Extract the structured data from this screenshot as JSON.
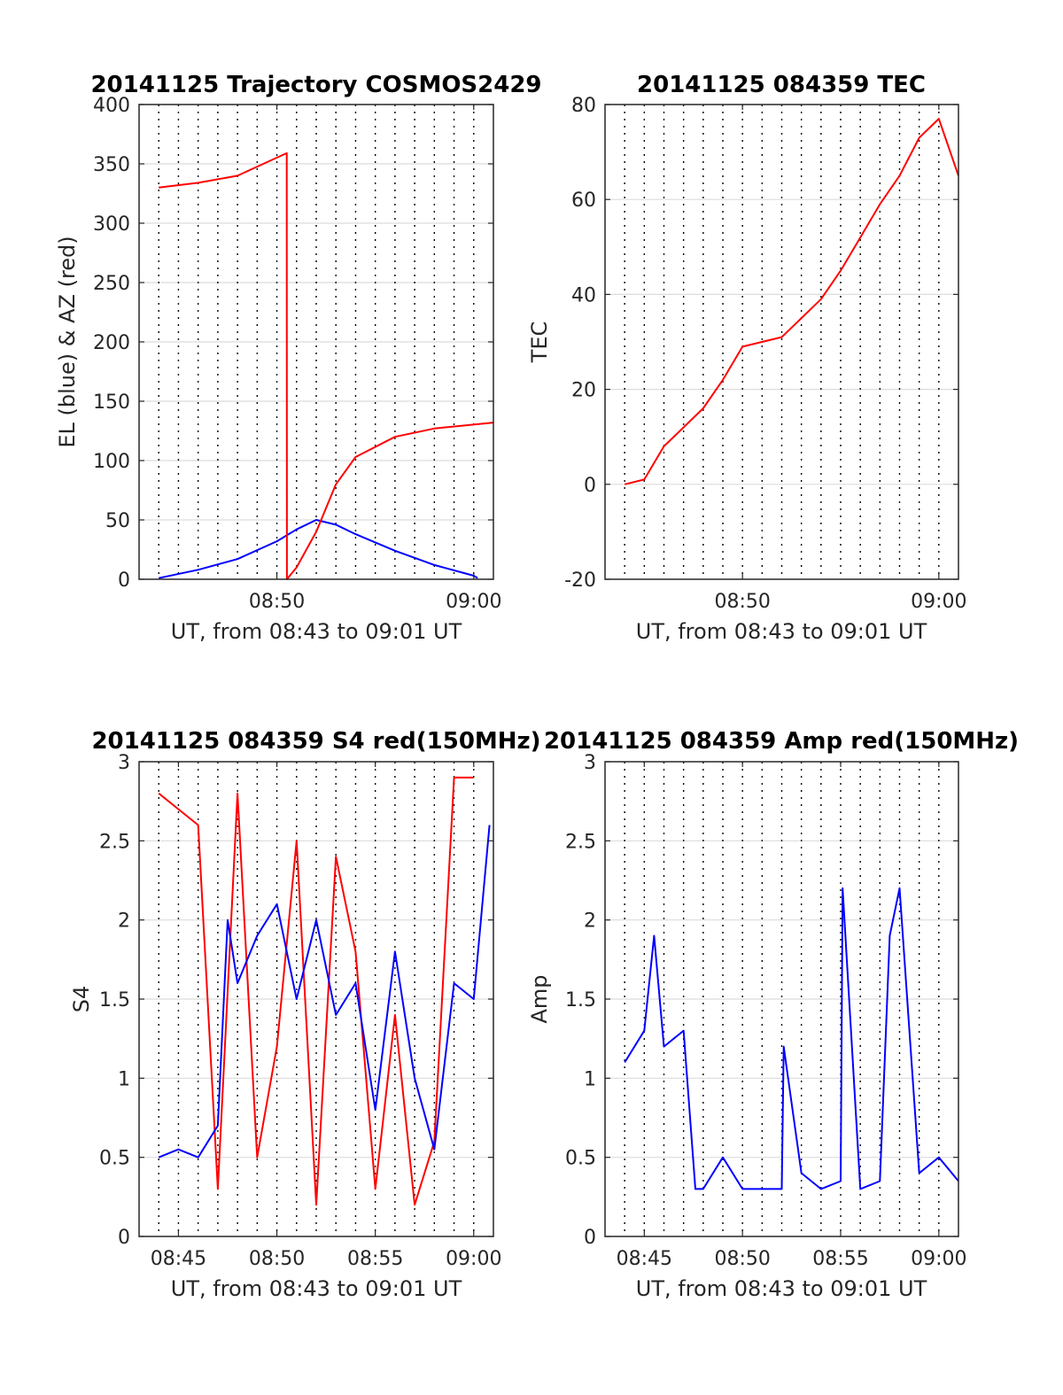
{
  "chart_data": [
    {
      "type": "line",
      "title": "20141125 Trajectory COSMOS2429",
      "xlabel": "UT, from 08:43 to 09:01 UT",
      "ylabel": "EL (blue) & AZ (red)",
      "xlim": [
        "08:43",
        "09:01"
      ],
      "ylim": [
        0,
        400
      ],
      "yticks": [
        0,
        50,
        100,
        150,
        200,
        250,
        300,
        350,
        400
      ],
      "xticks": [
        "08:50",
        "09:00"
      ],
      "minute_gridlines": true,
      "grid": true,
      "series": [
        {
          "color": "#0000ff",
          "x": [
            "08:44",
            "08:46",
            "08:48",
            "08:50",
            "08:51",
            "08:52",
            "08:53",
            "08:54",
            "08:56",
            "08:58",
            "09:00",
            "09:00.2"
          ],
          "values": [
            1,
            8,
            17,
            32,
            42,
            50,
            46,
            38,
            24,
            12,
            3,
            1
          ]
        },
        {
          "color": "#ff0000",
          "x": [
            "08:44",
            "08:46",
            "08:48",
            "08:50.5",
            "08:50.51",
            "08:51",
            "08:52",
            "08:53",
            "08:54",
            "08:56",
            "08:58",
            "09:01"
          ],
          "values": [
            330,
            334,
            340,
            359,
            0,
            10,
            40,
            80,
            103,
            120,
            127,
            132
          ]
        }
      ]
    },
    {
      "type": "line",
      "title": "20141125 084359 TEC",
      "xlabel": "UT, from 08:43 to 09:01 UT",
      "ylabel": "TEC",
      "xlim": [
        "08:43",
        "09:01"
      ],
      "ylim": [
        -20,
        80
      ],
      "yticks": [
        -20,
        0,
        20,
        40,
        60,
        80
      ],
      "xticks": [
        "08:50",
        "09:00"
      ],
      "minute_gridlines": true,
      "grid": true,
      "series": [
        {
          "color": "#ff0000",
          "x": [
            "08:44",
            "08:45",
            "08:46",
            "08:47",
            "08:48",
            "08:49",
            "08:50",
            "08:51",
            "08:52",
            "08:53",
            "08:54",
            "08:55",
            "08:56",
            "08:57",
            "08:58",
            "08:59",
            "09:00",
            "09:01"
          ],
          "values": [
            0,
            1,
            8,
            12,
            16,
            22,
            29,
            30,
            31,
            35,
            39,
            45,
            52,
            59,
            65,
            73,
            77,
            65
          ]
        }
      ]
    },
    {
      "type": "line",
      "title": "20141125 084359 S4 red(150MHz)",
      "xlabel": "UT, from 08:43 to 09:01 UT",
      "ylabel": "S4",
      "xlim": [
        "08:43",
        "09:01"
      ],
      "ylim": [
        0,
        3
      ],
      "yticks": [
        0,
        0.5,
        1,
        1.5,
        2,
        2.5,
        3
      ],
      "xticks": [
        "08:45",
        "08:50",
        "08:55",
        "09:00"
      ],
      "minute_gridlines": true,
      "grid": true,
      "series": [
        {
          "color": "#ff0000",
          "x": [
            "08:44",
            "08:45",
            "08:46",
            "08:47",
            "08:48",
            "08:49",
            "08:50",
            "08:51",
            "08:52",
            "08:53",
            "08:54",
            "08:55",
            "08:56",
            "08:57",
            "08:58",
            "08:59",
            "09:00"
          ],
          "values": [
            2.8,
            2.7,
            2.6,
            0.3,
            2.8,
            0.5,
            1.2,
            2.5,
            0.2,
            2.4,
            1.8,
            0.3,
            1.4,
            0.2,
            0.6,
            2.9,
            2.9
          ]
        },
        {
          "color": "#0000ff",
          "x": [
            "08:44",
            "08:45",
            "08:46",
            "08:47",
            "08:47.5",
            "08:48",
            "08:49",
            "08:50",
            "08:51",
            "08:52",
            "08:53",
            "08:54",
            "08:55",
            "08:56",
            "08:57",
            "08:58",
            "08:59",
            "09:00",
            "09:00.8"
          ],
          "values": [
            0.5,
            0.55,
            0.5,
            0.7,
            2.0,
            1.6,
            1.9,
            2.1,
            1.5,
            2.0,
            1.4,
            1.6,
            0.8,
            1.8,
            1.0,
            0.55,
            1.6,
            1.5,
            2.6
          ]
        }
      ]
    },
    {
      "type": "line",
      "title": "20141125 084359 Amp red(150MHz)",
      "xlabel": "UT, from 08:43 to 09:01 UT",
      "ylabel": "Amp",
      "xlim": [
        "08:43",
        "09:01"
      ],
      "ylim": [
        0,
        3
      ],
      "yticks": [
        0,
        0.5,
        1,
        1.5,
        2,
        2.5,
        3
      ],
      "xticks": [
        "08:45",
        "08:50",
        "08:55",
        "09:00"
      ],
      "minute_gridlines": true,
      "grid": true,
      "series": [
        {
          "color": "#0000ff",
          "x": [
            "08:44",
            "08:45",
            "08:45.5",
            "08:46",
            "08:47",
            "08:47.6",
            "08:48",
            "08:49",
            "08:50",
            "08:51",
            "08:52",
            "08:52.1",
            "08:53",
            "08:54",
            "08:55",
            "08:55.1",
            "08:56",
            "08:57",
            "08:57.5",
            "08:58",
            "08:59",
            "09:00",
            "09:01"
          ],
          "values": [
            1.1,
            1.3,
            1.9,
            1.2,
            1.3,
            0.3,
            0.3,
            0.5,
            0.3,
            0.3,
            0.3,
            1.2,
            0.4,
            0.3,
            0.35,
            2.2,
            0.3,
            0.35,
            1.9,
            2.2,
            0.4,
            0.5,
            0.35
          ]
        }
      ]
    }
  ]
}
